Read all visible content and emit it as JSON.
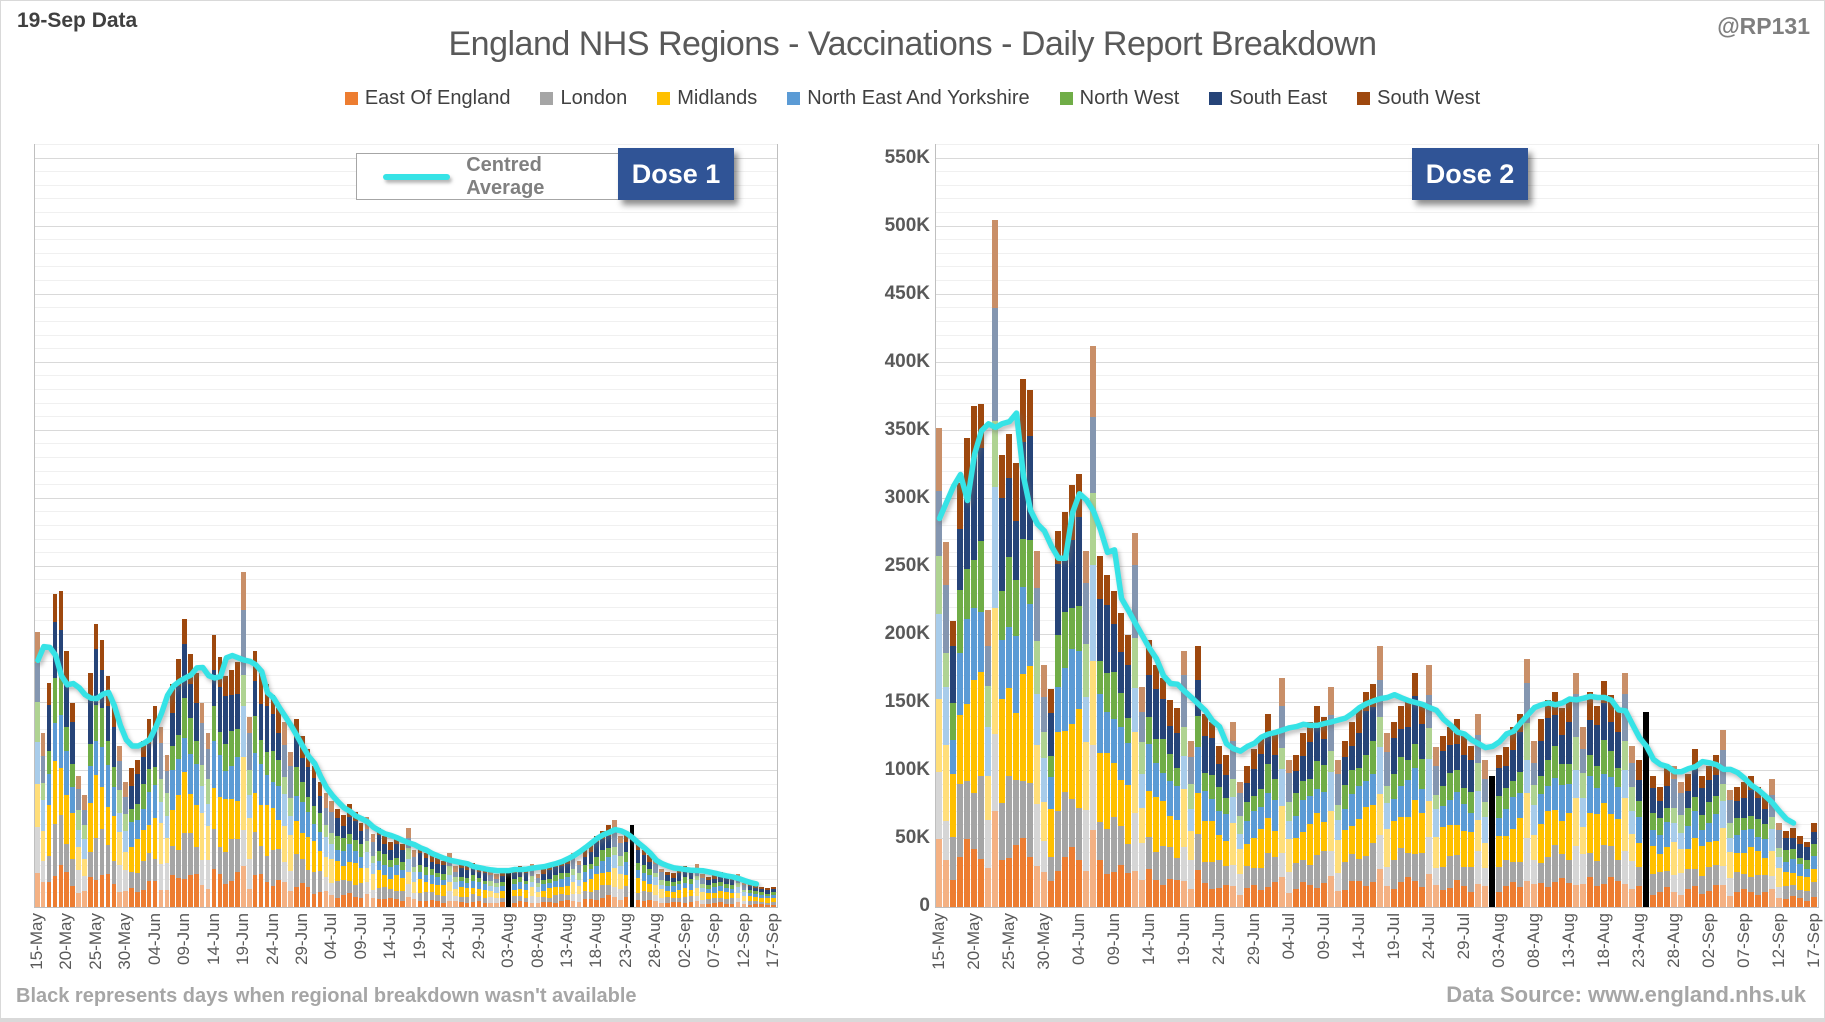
{
  "header": {
    "data_note": "19-Sep Data",
    "title": "England NHS Regions - Vaccinations - Daily Report Breakdown",
    "handle": "@RP131"
  },
  "line_legend": "Centred Average",
  "line_color": "#36e3e6",
  "black_color": "#000000",
  "regions": [
    {
      "name": "East Of England",
      "color": "#ED7D31",
      "muted": "#F4B183"
    },
    {
      "name": "London",
      "color": "#A5A5A5",
      "muted": "#D6D6D6"
    },
    {
      "name": "Midlands",
      "color": "#FFC000",
      "muted": "#FFDE7A"
    },
    {
      "name": "North East And Yorkshire",
      "color": "#5B9BD5",
      "muted": "#A8CCEA"
    },
    {
      "name": "North West",
      "color": "#70AD47",
      "muted": "#AFD392"
    },
    {
      "name": "South East",
      "color": "#264478",
      "muted": "#8496B0"
    },
    {
      "name": "South West",
      "color": "#9E480E",
      "muted": "#C98F68"
    }
  ],
  "region_shares": [
    0.12,
    0.14,
    0.19,
    0.15,
    0.12,
    0.17,
    0.11
  ],
  "axis": {
    "y_tick_labels": [
      "0",
      "50K",
      "100K",
      "150K",
      "200K",
      "250K",
      "300K",
      "350K",
      "400K",
      "450K",
      "500K",
      "550K"
    ],
    "y_tick_step_k": 50,
    "y_minor_step_k": 10,
    "y_max_k": 560,
    "n_days": 126,
    "tick_every": 5,
    "x_tick_labels": [
      "15-May",
      "20-May",
      "25-May",
      "30-May",
      "04-Jun",
      "09-Jun",
      "14-Jun",
      "19-Jun",
      "24-Jun",
      "29-Jun",
      "04-Jul",
      "09-Jul",
      "14-Jul",
      "19-Jul",
      "24-Jul",
      "29-Jul",
      "03-Aug",
      "08-Aug",
      "13-Aug",
      "18-Aug",
      "23-Aug",
      "28-Aug",
      "02-Sep",
      "07-Sep",
      "12-Sep",
      "17-Sep"
    ],
    "weekend_pattern_mod7": [
      0,
      1
    ]
  },
  "chart_data": [
    {
      "type": "bar",
      "badge": "Dose 1",
      "stacking": "stacked",
      "units": "thousands of vaccinations per day",
      "values_k": [
        202,
        128,
        165,
        230,
        232,
        188,
        150,
        96,
        82,
        172,
        208,
        196,
        170,
        148,
        118,
        92,
        102,
        108,
        122,
        138,
        148,
        132,
        112,
        164,
        182,
        212,
        186,
        172,
        150,
        128,
        200,
        184,
        170,
        174,
        180,
        246,
        140,
        188,
        172,
        164,
        156,
        146,
        136,
        114,
        138,
        126,
        116,
        104,
        92,
        84,
        78,
        72,
        68,
        76,
        70,
        62,
        66,
        54,
        58,
        52,
        48,
        52,
        46,
        58,
        42,
        44,
        40,
        38,
        36,
        34,
        40,
        30,
        32,
        30,
        32,
        30,
        28,
        26,
        24,
        26,
        25,
        28,
        30,
        28,
        32,
        24,
        28,
        30,
        32,
        34,
        36,
        40,
        34,
        42,
        46,
        52,
        56,
        60,
        64,
        52,
        54,
        60,
        46,
        42,
        38,
        36,
        28,
        26,
        25,
        28,
        30,
        28,
        32,
        24,
        22,
        24,
        26,
        24,
        22,
        24,
        18,
        17,
        16,
        15,
        14,
        15
      ],
      "black_days": {
        "80": 25,
        "101": 60
      }
    },
    {
      "type": "bar",
      "badge": "Dose 2",
      "stacking": "stacked",
      "units": "thousands of vaccinations per day",
      "values_k": [
        352,
        268,
        210,
        312,
        345,
        368,
        370,
        218,
        505,
        332,
        348,
        326,
        388,
        380,
        262,
        178,
        160,
        276,
        290,
        310,
        318,
        262,
        412,
        258,
        244,
        232,
        216,
        200,
        275,
        162,
        196,
        178,
        168,
        152,
        146,
        188,
        122,
        192,
        142,
        136,
        118,
        112,
        136,
        92,
        104,
        116,
        124,
        142,
        128,
        168,
        108,
        112,
        128,
        136,
        148,
        140,
        162,
        108,
        122,
        136,
        146,
        158,
        164,
        192,
        128,
        136,
        148,
        152,
        172,
        148,
        178,
        118,
        126,
        132,
        138,
        126,
        118,
        142,
        108,
        96,
        112,
        118,
        132,
        142,
        182,
        122,
        138,
        152,
        158,
        146,
        152,
        172,
        132,
        158,
        148,
        166,
        156,
        146,
        172,
        118,
        108,
        143,
        96,
        88,
        102,
        104,
        92,
        98,
        116,
        96,
        104,
        112,
        130,
        86,
        88,
        92,
        96,
        88,
        82,
        94,
        62,
        56,
        58,
        52,
        48,
        62
      ],
      "black_days": {
        "79": 96,
        "101": 143
      }
    }
  ],
  "footer": {
    "note": "Black represents days when regional breakdown wasn't available",
    "source": "Data Source: www.england.nhs.uk"
  }
}
